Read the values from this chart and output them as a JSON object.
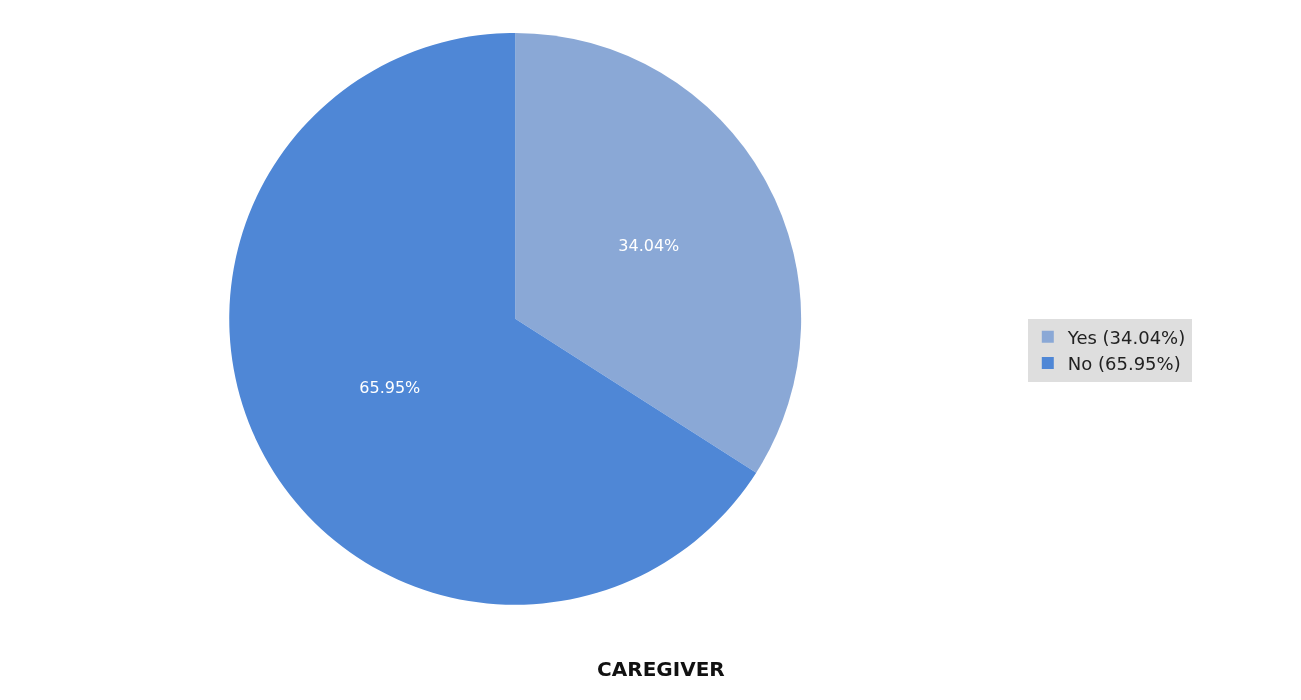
{
  "chart_data": {
    "type": "pie",
    "title": "CAREGIVER",
    "categories": [
      "Yes (34.04%)",
      "No (65.95%)"
    ],
    "values": [
      34.04,
      65.95
    ],
    "colors": [
      "#8aa8d6",
      "#4f87d6"
    ],
    "value_labels": [
      "34.04%",
      "65.95%"
    ],
    "legend": "right"
  }
}
